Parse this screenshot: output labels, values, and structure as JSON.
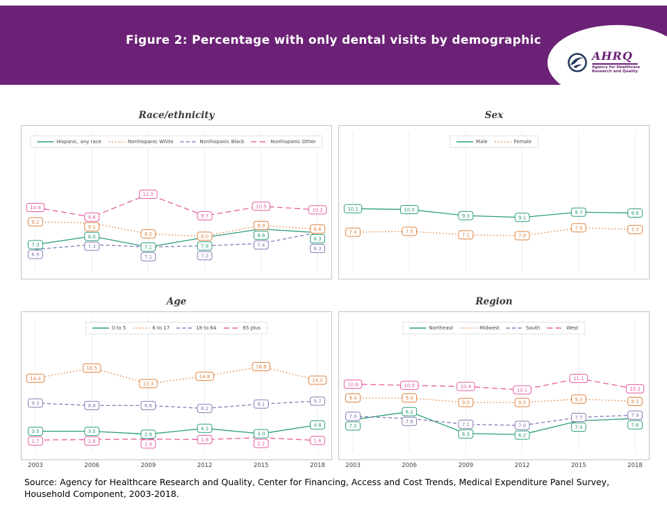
{
  "header": {
    "title": "Figure 2: Percentage with only dental visits by demographic",
    "bg_color": "#6b2175",
    "logo": {
      "name": "AHRQ",
      "tagline": "Agency for Healthcare Research and Quality"
    }
  },
  "footer": {
    "source": "Source: Agency for Healthcare Research and Quality, Center for Financing, Access and Cost Trends, Medical Expenditure Panel Survey, Household Component, 2003-2018."
  },
  "palette": {
    "teal": "#2a9d78",
    "orange": "#e0813c",
    "purple": "#8379b5",
    "pink": "#e75ba0"
  },
  "years": [
    "2003",
    "2006",
    "2009",
    "2012",
    "2015",
    "2018"
  ],
  "chart_data": [
    {
      "type": "line",
      "title": "Race/ethnicity",
      "categories": [
        "2003",
        "2006",
        "2009",
        "2012",
        "2015",
        "2018"
      ],
      "ylim": [
        5.5,
        13.5
      ],
      "legend_position": "top",
      "grid": "vertical",
      "x_axis": false,
      "series": [
        {
          "name": "Hispanic, any race",
          "color": "#2a9d78",
          "dash": "solid",
          "values": [
            7.3,
            8.0,
            7.1,
            7.9,
            8.6,
            8.3
          ]
        },
        {
          "name": "Nonhispanic White",
          "color": "#e0813c",
          "dash": "dotted",
          "values": [
            9.2,
            9.1,
            8.2,
            8.0,
            8.9,
            8.6
          ]
        },
        {
          "name": "Nonhispanic Black",
          "color": "#8379b5",
          "dash": "dashed",
          "values": [
            6.9,
            7.3,
            7.1,
            7.2,
            7.4,
            8.3
          ]
        },
        {
          "name": "Nonhispanic Other",
          "color": "#e75ba0",
          "dash": "longdash",
          "values": [
            10.4,
            9.6,
            11.5,
            9.7,
            10.5,
            10.2
          ]
        }
      ]
    },
    {
      "type": "line",
      "title": "Sex",
      "categories": [
        "2003",
        "2006",
        "2009",
        "2012",
        "2015",
        "2018"
      ],
      "ylim": [
        3.5,
        14.5
      ],
      "legend_position": "top",
      "grid": "vertical",
      "x_axis": false,
      "series": [
        {
          "name": "Male",
          "color": "#2a9d78",
          "dash": "solid",
          "values": [
            10.1,
            10.0,
            9.3,
            9.1,
            9.7,
            9.6
          ]
        },
        {
          "name": "Female",
          "color": "#e0813c",
          "dash": "dotted",
          "values": [
            7.4,
            7.5,
            7.1,
            7.0,
            7.9,
            7.7
          ]
        }
      ]
    },
    {
      "type": "line",
      "title": "Age",
      "categories": [
        "2003",
        "2006",
        "2009",
        "2012",
        "2015",
        "2018"
      ],
      "ylim": [
        0,
        20
      ],
      "legend_position": "top",
      "grid": "vertical",
      "x_axis": true,
      "series": [
        {
          "name": "0 to 5",
          "color": "#2a9d78",
          "dash": "solid",
          "values": [
            3.5,
            3.5,
            2.9,
            4.1,
            3.0,
            4.8
          ]
        },
        {
          "name": "6 to 17",
          "color": "#e0813c",
          "dash": "dotted",
          "values": [
            14.4,
            16.5,
            13.3,
            14.8,
            16.8,
            14.0
          ]
        },
        {
          "name": "18 to 64",
          "color": "#8379b5",
          "dash": "dashed",
          "values": [
            9.3,
            8.8,
            8.8,
            8.2,
            9.1,
            9.7
          ]
        },
        {
          "name": "65 plus",
          "color": "#e75ba0",
          "dash": "longdash",
          "values": [
            1.7,
            1.8,
            1.9,
            1.8,
            2.2,
            1.6
          ]
        }
      ]
    },
    {
      "type": "line",
      "title": "Region",
      "categories": [
        "2003",
        "2006",
        "2009",
        "2012",
        "2015",
        "2018"
      ],
      "ylim": [
        5,
        13.5
      ],
      "legend_position": "top",
      "grid": "vertical",
      "x_axis": true,
      "series": [
        {
          "name": "Northeast",
          "color": "#2a9d78",
          "dash": "solid",
          "values": [
            7.5,
            8.2,
            6.3,
            6.2,
            7.4,
            7.6
          ]
        },
        {
          "name": "Midwest",
          "color": "#e0813c",
          "dash": "dotted",
          "values": [
            9.4,
            9.4,
            9.0,
            9.0,
            9.3,
            9.1
          ]
        },
        {
          "name": "South",
          "color": "#8379b5",
          "dash": "dashed",
          "values": [
            7.8,
            7.6,
            7.1,
            7.0,
            7.7,
            7.9
          ]
        },
        {
          "name": "West",
          "color": "#e75ba0",
          "dash": "longdash",
          "values": [
            10.6,
            10.5,
            10.4,
            10.1,
            11.1,
            10.2
          ]
        }
      ]
    }
  ]
}
